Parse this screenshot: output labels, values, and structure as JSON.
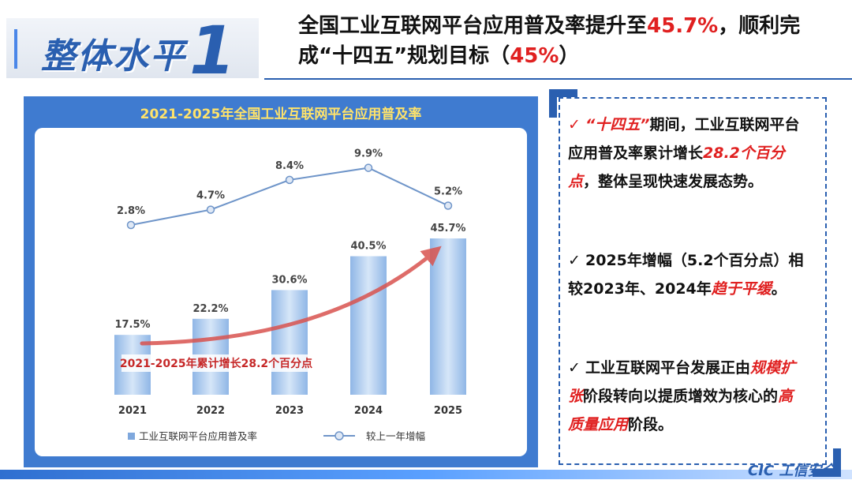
{
  "badge": {
    "text": "整体水平",
    "number": "1"
  },
  "header": {
    "title_part1": "全国工业互联网平台应用普及率提升至",
    "title_highlight1": "45.7%",
    "title_part2": "，顺利完成“十四五”规划目标（",
    "title_highlight2": "45%",
    "title_part3": "）"
  },
  "chart_data": {
    "type": "bar+line",
    "title": "2021-2025年全国工业互联网平台应用普及率",
    "categories": [
      "2021",
      "2022",
      "2023",
      "2024",
      "2025"
    ],
    "series": [
      {
        "name": "工业互联网平台应用普及率",
        "type": "bar",
        "values": [
          17.5,
          22.2,
          30.6,
          40.5,
          45.7
        ],
        "labels": [
          "17.5%",
          "22.2%",
          "30.6%",
          "40.5%",
          "45.7%"
        ]
      },
      {
        "name": "较上一年增幅",
        "type": "line",
        "values": [
          2.8,
          4.7,
          8.4,
          9.9,
          5.2
        ],
        "labels": [
          "2.8%",
          "4.7%",
          "8.4%",
          "9.9%",
          "5.2%"
        ]
      }
    ],
    "annotation": "2021-2025年累计增长28.2个百分点",
    "legend_position": "bottom",
    "colors": {
      "bar": "#a9c9ee",
      "line": "#6f95c9",
      "arrow": "#d9534f",
      "annotation": "#c62828"
    }
  },
  "right_panel": {
    "b1": {
      "check": "✓",
      "p1": "“十四五”",
      "p2": "期间，工业互联网平台应用普及率累计增长",
      "p3": "28.2个百分点",
      "p4": "，整体呈现快速发展态势。"
    },
    "b2": {
      "check": "✓",
      "p1": "2025年增幅（5.2个百分点）相较2023年、2024年",
      "p2": "趋于平缓",
      "p3": "。"
    },
    "b3": {
      "check": "✓",
      "p1": "工业互联网平台发展正由",
      "p2": "规模扩张",
      "p3": "阶段转向以提质增效为核心的",
      "p4": "高质量应用",
      "p5": "阶段。"
    }
  },
  "logo": "CIC 工信安全"
}
